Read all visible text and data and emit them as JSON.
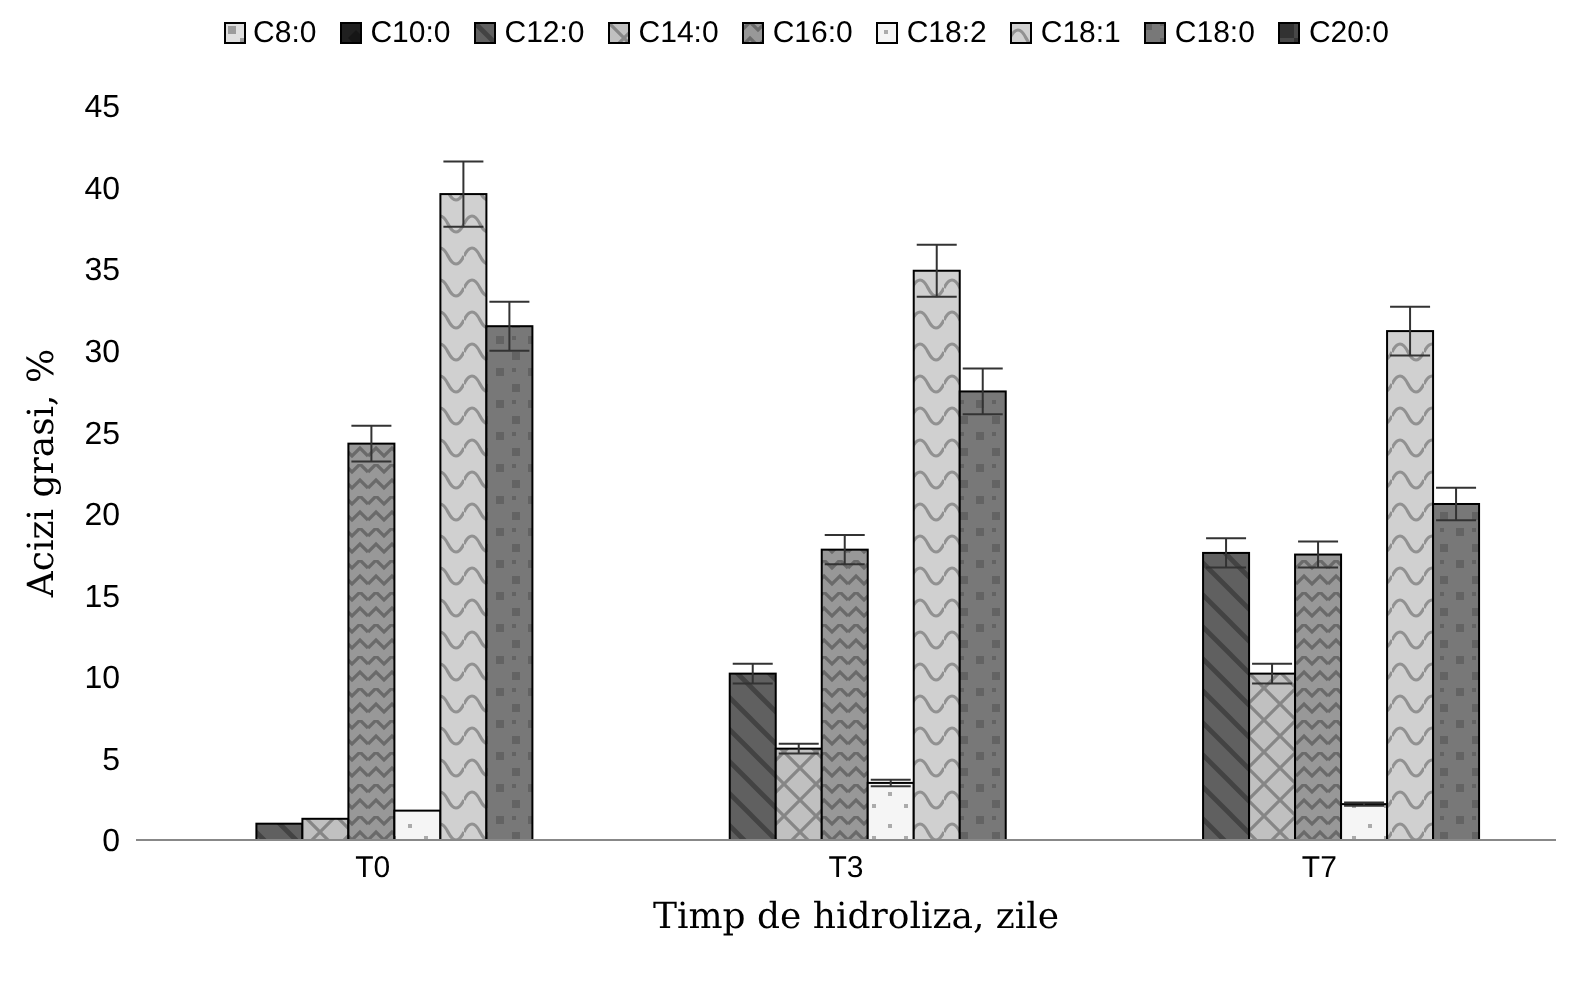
{
  "chart_data": {
    "type": "bar",
    "xlabel": "Timp de hidroliza, zile",
    "ylabel": "Acizi grasi, %",
    "categories": [
      "T0",
      "T3",
      "T7"
    ],
    "series": [
      {
        "name": "C8:0",
        "color": "#e0e0e0",
        "values": [
          0,
          0,
          0
        ]
      },
      {
        "name": "C10:0",
        "color": "#202020",
        "values": [
          0,
          0,
          0
        ]
      },
      {
        "name": "C12:0",
        "color": "#606060",
        "values": [
          1.0,
          10.2,
          17.6
        ],
        "errors": [
          null,
          0.6,
          0.9
        ]
      },
      {
        "name": "C14:0",
        "color": "#c0c0c0",
        "values": [
          1.3,
          5.6,
          10.2
        ],
        "errors": [
          null,
          0.3,
          0.6
        ]
      },
      {
        "name": "C16:0",
        "color": "#989898",
        "values": [
          24.3,
          17.8,
          17.5
        ],
        "errors": [
          1.1,
          0.9,
          0.8
        ]
      },
      {
        "name": "C18:2",
        "color": "#f5f5f5",
        "values": [
          1.8,
          3.5,
          2.2
        ],
        "errors": [
          null,
          0.2,
          0.1
        ]
      },
      {
        "name": "C18:1",
        "color": "#d0d0d0",
        "values": [
          39.6,
          34.9,
          31.2
        ],
        "errors": [
          2.0,
          1.6,
          1.5
        ]
      },
      {
        "name": "C18:0",
        "color": "#787878",
        "values": [
          31.5,
          27.5,
          20.6
        ],
        "errors": [
          1.5,
          1.4,
          1.0
        ]
      },
      {
        "name": "C20:0",
        "color": "#484848",
        "values": [
          0,
          0,
          0
        ]
      }
    ],
    "ylim": [
      0,
      45
    ],
    "yticks": [
      0,
      5,
      10,
      15,
      20,
      25,
      30,
      35,
      40,
      45
    ],
    "grid": false,
    "legend": "top"
  }
}
